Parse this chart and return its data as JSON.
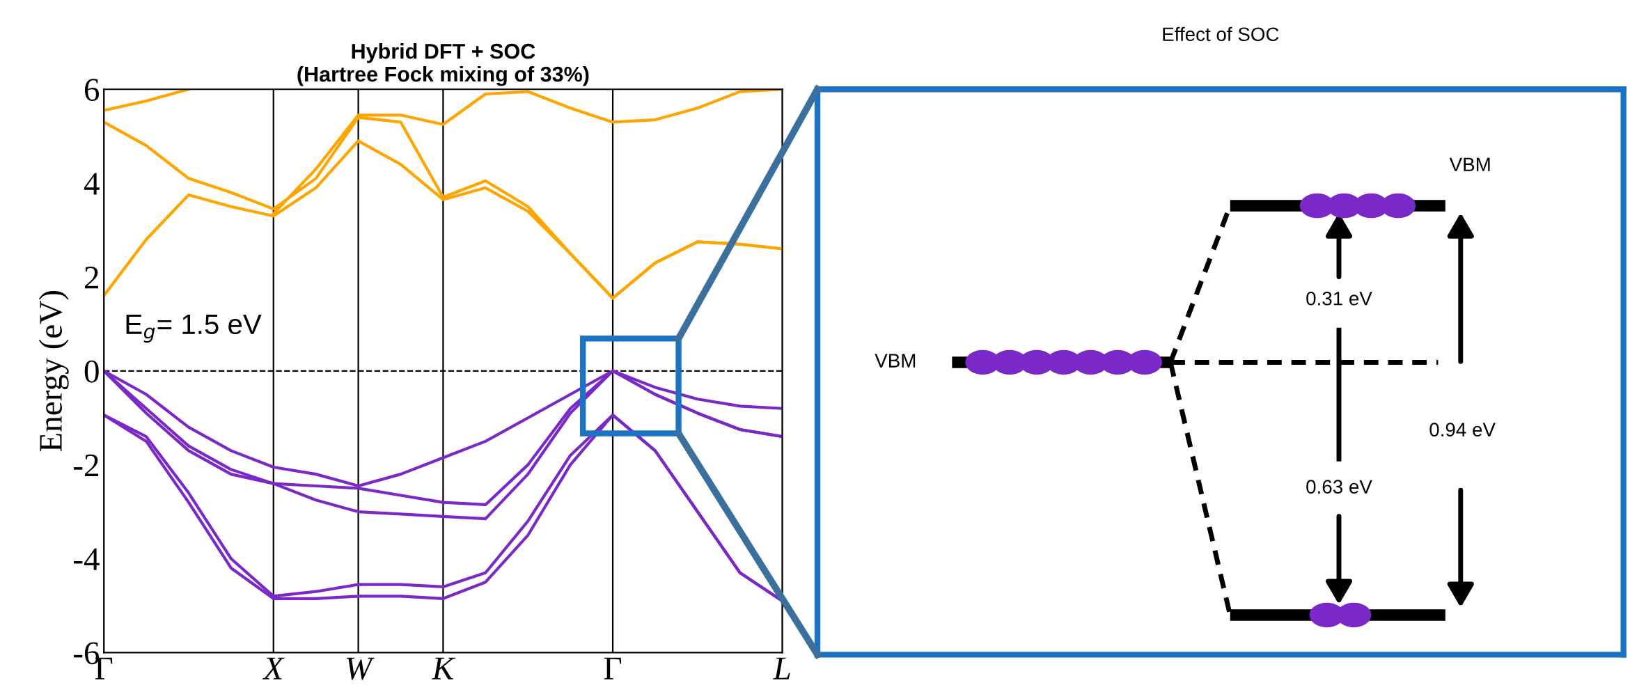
{
  "chart_data": [
    {
      "type": "line",
      "title": "Hybrid DFT + SOC\n(Hartree Fock mixing of 33%)",
      "ylabel": "Energy (eV)",
      "categories": [
        "Γ",
        null,
        null,
        null,
        "X",
        null,
        "W",
        null,
        "K",
        null,
        null,
        null,
        "Γ",
        null,
        null,
        null,
        "L"
      ],
      "series": [
        {
          "color": "#7a28c8",
          "values": [
            0,
            -0.5,
            -1.2,
            -1.7,
            -2.05,
            -2.2,
            -2.45,
            -2.2,
            -1.85,
            -1.5,
            -1.0,
            -0.5,
            0,
            -0.35,
            -0.6,
            -0.75,
            -0.8
          ]
        },
        {
          "color": "#7a28c8",
          "values": [
            0,
            -0.8,
            -1.6,
            -2.1,
            -2.4,
            -2.45,
            -2.5,
            -2.65,
            -2.8,
            -2.85,
            -2.0,
            -0.8,
            0,
            -0.5,
            -0.9,
            -1.25,
            -1.4
          ]
        },
        {
          "color": "#7a28c8",
          "values": [
            0,
            -0.9,
            -1.7,
            -2.2,
            -2.4,
            -2.75,
            -3.0,
            -3.05,
            -3.1,
            -3.15,
            -2.2,
            -0.9,
            0,
            -0.5,
            -0.9,
            -1.25,
            -1.4
          ]
        },
        {
          "color": "#7a28c8",
          "values": [
            -0.94,
            -1.4,
            -2.6,
            -4.0,
            -4.8,
            -4.7,
            -4.55,
            -4.55,
            -4.6,
            -4.3,
            -3.2,
            -1.8,
            -0.94,
            -1.7,
            -3.0,
            -4.3,
            -4.9
          ]
        },
        {
          "color": "#7a28c8",
          "values": [
            -0.94,
            -1.5,
            -2.8,
            -4.2,
            -4.85,
            -4.85,
            -4.8,
            -4.8,
            -4.85,
            -4.5,
            -3.5,
            -2.0,
            -0.94,
            -1.7,
            -3.0,
            -4.3,
            -4.9
          ]
        },
        {
          "color": "#ffa500",
          "values": [
            1.6,
            2.8,
            3.75,
            3.5,
            3.3,
            3.9,
            4.9,
            4.4,
            3.65,
            3.9,
            3.4,
            2.5,
            1.55,
            2.3,
            2.75,
            2.7,
            2.6
          ]
        },
        {
          "color": "#ffa500",
          "values": [
            5.3,
            4.8,
            4.1,
            3.8,
            3.45,
            4.1,
            5.4,
            5.3,
            3.7,
            4.05,
            3.5,
            2.5,
            1.55,
            2.3,
            2.75,
            2.7,
            2.6
          ]
        },
        {
          "color": "#ffa500",
          "values": [
            5.55,
            5.75,
            6.0,
            null,
            3.35,
            4.3,
            5.45,
            5.45,
            5.25,
            5.9,
            5.95,
            5.6,
            5.3,
            5.35,
            5.6,
            5.95,
            6.0
          ]
        }
      ],
      "ylim": [
        -6,
        6
      ],
      "yticks": [
        -6,
        -4,
        -2,
        0,
        2,
        4,
        6
      ],
      "ref_lines": [
        {
          "axis": "y",
          "value": 0,
          "line_style": "dashed",
          "color": "#000000"
        }
      ],
      "annotations": [
        "E$_{g}$= 1.5 eV"
      ],
      "grid": "x",
      "legend": false
    },
    {
      "type": "other",
      "title": "Effect of SOC",
      "annotations": [
        "VBM",
        "VBM",
        "0.31 eV",
        "0.63 eV",
        "0.94 eV"
      ]
    }
  ]
}
